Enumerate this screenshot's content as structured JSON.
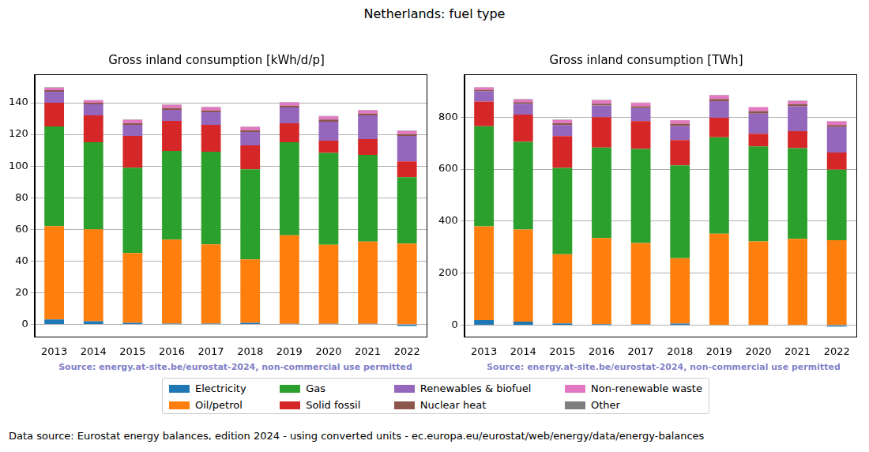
{
  "title": "Netherlands: fuel type",
  "footer": "Data source: Eurostat energy balances, edition 2024 - using converted units - ec.europa.eu/eurostat/web/energy/data/energy-balances",
  "legend": "bottom",
  "chart_data": [
    {
      "type": "bar",
      "stacked": true,
      "grid": true,
      "title": "Gross inland consumption [kWh/d/p]",
      "note": "Source: energy.at-site.be/eurostat-2024, non-commercial use permitted",
      "categories": [
        "2013",
        "2014",
        "2015",
        "2016",
        "2017",
        "2018",
        "2019",
        "2020",
        "2021",
        "2022"
      ],
      "ylim": [
        -8,
        158
      ],
      "yticks": [
        0,
        20,
        40,
        60,
        80,
        100,
        120,
        140
      ],
      "series": [
        {
          "name": "Electricity",
          "color": "#1f77b4",
          "values": [
            3,
            2,
            1,
            0.5,
            0.5,
            1,
            0.3,
            0.3,
            0.3,
            -1
          ]
        },
        {
          "name": "Oil/petrol",
          "color": "#ff7f0e",
          "values": [
            59,
            58,
            44,
            53,
            50,
            40,
            56,
            50,
            52,
            51
          ]
        },
        {
          "name": "Gas",
          "color": "#2ca02c",
          "values": [
            63,
            55,
            54,
            56,
            58.5,
            57,
            58.7,
            58,
            54.7,
            42
          ]
        },
        {
          "name": "Solid fossil",
          "color": "#d62728",
          "values": [
            15,
            17,
            20,
            19,
            17,
            15,
            12,
            7.7,
            10,
            10
          ]
        },
        {
          "name": "Renewables & biofuel",
          "color": "#9467bd",
          "values": [
            7,
            7,
            7,
            7,
            8,
            8.5,
            10,
            12,
            15,
            16
          ]
        },
        {
          "name": "Nuclear heat",
          "color": "#8c564b",
          "values": [
            1,
            1,
            1.2,
            1.2,
            1.2,
            1.2,
            1.2,
            1.4,
            1.2,
            1.2
          ]
        },
        {
          "name": "Non-renewable waste",
          "color": "#e377c2",
          "values": [
            1.5,
            1.5,
            2,
            2,
            2,
            2,
            2,
            2,
            2,
            2
          ]
        },
        {
          "name": "Other",
          "color": "#7f7f7f",
          "values": [
            0.3,
            0.2,
            0.2,
            0.2,
            0.2,
            0.2,
            0.2,
            0.2,
            0.2,
            0.2
          ]
        }
      ]
    },
    {
      "type": "bar",
      "stacked": true,
      "grid": true,
      "title": "Gross inland consumption [TWh]",
      "note": "Source: energy.at-site.be/eurostat-2024, non-commercial use permitted",
      "categories": [
        "2013",
        "2014",
        "2015",
        "2016",
        "2017",
        "2018",
        "2019",
        "2020",
        "2021",
        "2022"
      ],
      "ylim": [
        -45,
        965
      ],
      "yticks": [
        0,
        200,
        400,
        600,
        800
      ],
      "series": [
        {
          "name": "Electricity",
          "color": "#1f77b4",
          "values": [
            20,
            14,
            7,
            4,
            3,
            6,
            2,
            2,
            2,
            -5
          ]
        },
        {
          "name": "Oil/petrol",
          "color": "#ff7f0e",
          "values": [
            360,
            354,
            266,
            331,
            313,
            252,
            350,
            320,
            330,
            327
          ]
        },
        {
          "name": "Gas",
          "color": "#2ca02c",
          "values": [
            385,
            337,
            332,
            348,
            362,
            357,
            371,
            366,
            349,
            271
          ]
        },
        {
          "name": "Solid fossil",
          "color": "#d62728",
          "values": [
            95,
            105,
            122,
            117,
            107,
            97,
            75,
            48,
            65,
            66
          ]
        },
        {
          "name": "Renewables & biofuel",
          "color": "#9467bd",
          "values": [
            40,
            42,
            43,
            45,
            50,
            55,
            64,
            78,
            96,
            98
          ]
        },
        {
          "name": "Nuclear heat",
          "color": "#8c564b",
          "values": [
            5,
            6,
            7,
            7,
            7,
            8,
            8,
            9,
            8,
            8
          ]
        },
        {
          "name": "Non-renewable waste",
          "color": "#e377c2",
          "values": [
            10,
            10,
            12,
            13,
            13,
            13,
            14,
            15,
            12,
            14
          ]
        },
        {
          "name": "Other",
          "color": "#7f7f7f",
          "values": [
            1,
            1,
            1,
            1,
            1,
            1,
            1,
            1,
            1,
            1
          ]
        }
      ]
    }
  ]
}
